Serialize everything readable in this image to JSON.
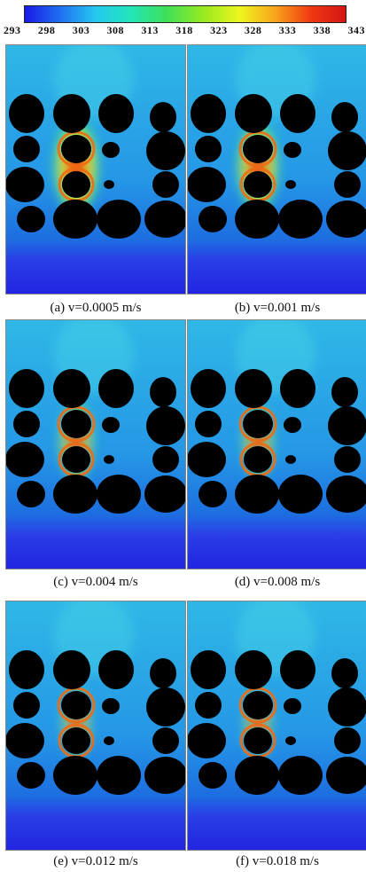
{
  "colorbar": {
    "ticks": [
      "293",
      "298",
      "303",
      "308",
      "313",
      "318",
      "323",
      "328",
      "333",
      "338",
      "343"
    ],
    "colors": [
      "#1a1ae6",
      "#1f6ff0",
      "#25c8f0",
      "#22e6b8",
      "#3ee05a",
      "#9aea1e",
      "#eef51f",
      "#f8a41a",
      "#f03a12",
      "#d41414"
    ]
  },
  "panels": [
    {
      "caption": "(a) v=0.0005 m/s",
      "heat": 1.0
    },
    {
      "caption": "(b) v=0.001 m/s",
      "heat": 0.85
    },
    {
      "caption": "(c) v=0.004 m/s",
      "heat": 0.55
    },
    {
      "caption": "(d) v=0.008 m/s",
      "heat": 0.4
    },
    {
      "caption": "(e) v=0.012 m/s",
      "heat": 0.3
    },
    {
      "caption": "(f) v=0.018 m/s",
      "heat": 0.25
    }
  ]
}
